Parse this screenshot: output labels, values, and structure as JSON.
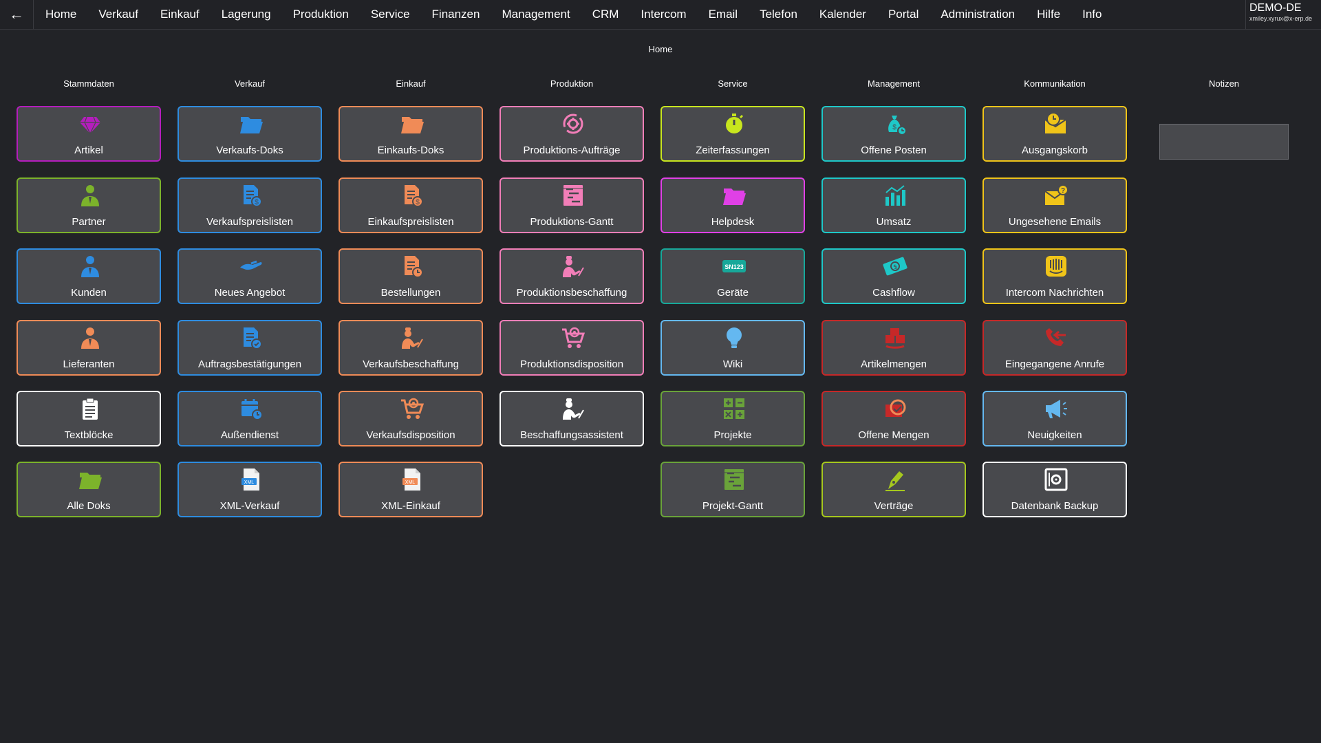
{
  "topbar": {
    "back": "←",
    "nav": [
      "Home",
      "Verkauf",
      "Einkauf",
      "Lagerung",
      "Produktion",
      "Service",
      "Finanzen",
      "Management",
      "CRM",
      "Intercom",
      "Email",
      "Telefon",
      "Kalender",
      "Portal",
      "Administration",
      "Hilfe",
      "Info"
    ],
    "account_name": "DEMO-DE",
    "account_email": "xmiley.xyrux@x-erp.de"
  },
  "page_title": "Home",
  "columns": {
    "stammdaten": "Stammdaten",
    "verkauf": "Verkauf",
    "einkauf": "Einkauf",
    "produktion": "Produktion",
    "service": "Service",
    "management": "Management",
    "kommunikation": "Kommunikation",
    "notizen": "Notizen"
  },
  "tiles": {
    "artikel": {
      "label": "Artikel",
      "color": "#b51dbd",
      "icon": "diamond-icon"
    },
    "partner": {
      "label": "Partner",
      "color": "#7cb32b",
      "icon": "person-icon"
    },
    "kunden": {
      "label": "Kunden",
      "color": "#2e8ce0",
      "icon": "person-icon"
    },
    "lieferanten": {
      "label": "Lieferanten",
      "color": "#f08b57",
      "icon": "person-icon"
    },
    "textbloecke": {
      "label": "Textblöcke",
      "color": "#ffffff",
      "icon": "clipboard-icon"
    },
    "alle_doks": {
      "label": "Alle Doks",
      "color": "#7cb32b",
      "icon": "folder-icon"
    },
    "verkaufs_doks": {
      "label": "Verkaufs-Doks",
      "color": "#2e8ce0",
      "icon": "folder-icon"
    },
    "verkaufspreislisten": {
      "label": "Verkaufspreislisten",
      "color": "#2e8ce0",
      "icon": "pricelist-icon"
    },
    "neues_angebot": {
      "label": "Neues Angebot",
      "color": "#2e8ce0",
      "icon": "hand-icon"
    },
    "auftragsbestaetigungen": {
      "label": "Auftragsbestätigungen",
      "color": "#2e8ce0",
      "icon": "doc-check-icon"
    },
    "aussendienst": {
      "label": "Außendienst",
      "color": "#2e8ce0",
      "icon": "calendar-clock-icon"
    },
    "xml_verkauf": {
      "label": "XML-Verkauf",
      "color": "#2e8ce0",
      "icon": "xml-file-icon"
    },
    "einkaufs_doks": {
      "label": "Einkaufs-Doks",
      "color": "#f08b57",
      "icon": "folder-icon"
    },
    "einkaufspreislisten": {
      "label": "Einkaufspreislisten",
      "color": "#f08b57",
      "icon": "pricelist-icon"
    },
    "bestellungen": {
      "label": "Bestellungen",
      "color": "#f08b57",
      "icon": "doc-clock-icon"
    },
    "verkaufsbeschaffung": {
      "label": "Verkaufsbeschaffung",
      "color": "#f08b57",
      "icon": "chef-icon"
    },
    "verkaufsdisposition": {
      "label": "Verkaufsdisposition",
      "color": "#f08b57",
      "icon": "cart-icon"
    },
    "xml_einkauf": {
      "label": "XML-Einkauf",
      "color": "#f08b57",
      "icon": "xml-file-icon"
    },
    "produktions_auftraege": {
      "label": "Produktions-Aufträge",
      "color": "#f27eb8",
      "icon": "cycle-gear-icon"
    },
    "produktions_gantt": {
      "label": "Produktions-Gantt",
      "color": "#f27eb8",
      "icon": "gantt-icon"
    },
    "produktionsbeschaffung": {
      "label": "Produktionsbeschaffung",
      "color": "#f27eb8",
      "icon": "chef-icon"
    },
    "produktionsdisposition": {
      "label": "Produktionsdisposition",
      "color": "#f27eb8",
      "icon": "cart-icon"
    },
    "beschaffungsassistent": {
      "label": "Beschaffungsassistent",
      "color": "#ffffff",
      "icon": "chef-icon"
    },
    "zeiterfassungen": {
      "label": "Zeiterfassungen",
      "color": "#c8e61e",
      "icon": "stopwatch-icon"
    },
    "helpdesk": {
      "label": "Helpdesk",
      "color": "#e040e6",
      "icon": "folder-icon"
    },
    "geraete": {
      "label": "Geräte",
      "color": "#17a89a",
      "icon": "serial-tag-icon",
      "tag": "SN123"
    },
    "wiki": {
      "label": "Wiki",
      "color": "#64b8f0",
      "icon": "lightbulb-icon"
    },
    "projekte": {
      "label": "Projekte",
      "color": "#6aa33a",
      "icon": "grid-plus-icon"
    },
    "projekt_gantt": {
      "label": "Projekt-Gantt",
      "color": "#6aa33a",
      "icon": "gantt-icon"
    },
    "offene_posten": {
      "label": "Offene Posten",
      "color": "#1ec8c8",
      "icon": "moneybag-icon"
    },
    "umsatz": {
      "label": "Umsatz",
      "color": "#1ec8c8",
      "icon": "bar-chart-icon"
    },
    "cashflow": {
      "label": "Cashflow",
      "color": "#1ec8c8",
      "icon": "money-icon"
    },
    "artikelmengen": {
      "label": "Artikelmengen",
      "color": "#c62828",
      "icon": "boxes-icon"
    },
    "offene_mengen": {
      "label": "Offene Mengen",
      "color": "#c62828",
      "icon": "box-cycle-icon"
    },
    "vertraege": {
      "label": "Verträge",
      "color": "#a6c81e",
      "icon": "pen-icon"
    },
    "ausgangskorb": {
      "label": "Ausgangskorb",
      "color": "#f0c419",
      "icon": "mail-clock-icon"
    },
    "ungesehene_emails": {
      "label": "Ungesehene Emails",
      "color": "#f0c419",
      "icon": "mail-question-icon"
    },
    "intercom_nachrichten": {
      "label": "Intercom Nachrichten",
      "color": "#f0c419",
      "icon": "intercom-icon"
    },
    "eingegangene_anrufe": {
      "label": "Eingegangene Anrufe",
      "color": "#c62828",
      "icon": "phone-incoming-icon"
    },
    "neuigkeiten": {
      "label": "Neuigkeiten",
      "color": "#64b8f0",
      "icon": "megaphone-icon"
    },
    "datenbank_backup": {
      "label": "Datenbank Backup",
      "color": "#ffffff",
      "icon": "safe-icon"
    }
  }
}
